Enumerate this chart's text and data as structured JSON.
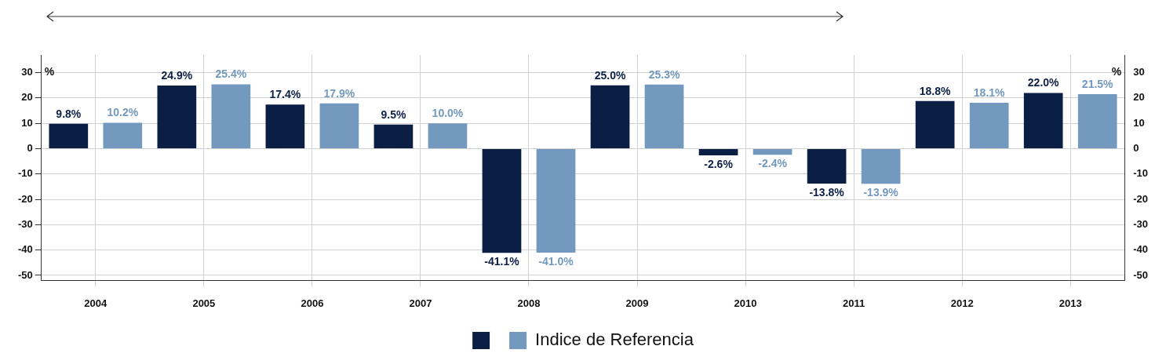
{
  "chart_data": {
    "type": "bar",
    "categories": [
      "2004",
      "2005",
      "2006",
      "2007",
      "2008",
      "2009",
      "2010",
      "2011",
      "2012",
      "2013"
    ],
    "series": [
      {
        "color": "#0b1f45",
        "values": [
          9.8,
          24.9,
          17.4,
          9.5,
          -41.1,
          25.0,
          -2.6,
          -13.8,
          18.8,
          22.0
        ],
        "value_labels": [
          "9.8%",
          "24.9%",
          "17.4%",
          "9.5%",
          "-41.1%",
          "25.0%",
          "-2.6%",
          "-13.8%",
          "18.8%",
          "22.0%"
        ]
      },
      {
        "name": "Indice de Referencia",
        "color": "#7399bf",
        "values": [
          10.2,
          25.4,
          17.9,
          10.0,
          -41.0,
          25.3,
          -2.4,
          -13.9,
          18.1,
          21.5
        ],
        "value_labels": [
          "10.2%",
          "25.4%",
          "17.9%",
          "10.0%",
          "-41.0%",
          "25.3%",
          "-2.4%",
          "-13.9%",
          "18.1%",
          "21.5%"
        ]
      }
    ],
    "ylabel": "%",
    "y2label": "%",
    "ylim": [
      -52,
      37
    ],
    "yticks": [
      -50,
      -40,
      -30,
      -20,
      -10,
      0,
      10,
      20,
      30
    ],
    "y2lim": [
      -52,
      37
    ],
    "y2ticks": [
      -50,
      -40,
      -30,
      -20,
      -10,
      0,
      10,
      20,
      30
    ],
    "grid": true,
    "legend": "bottom"
  }
}
